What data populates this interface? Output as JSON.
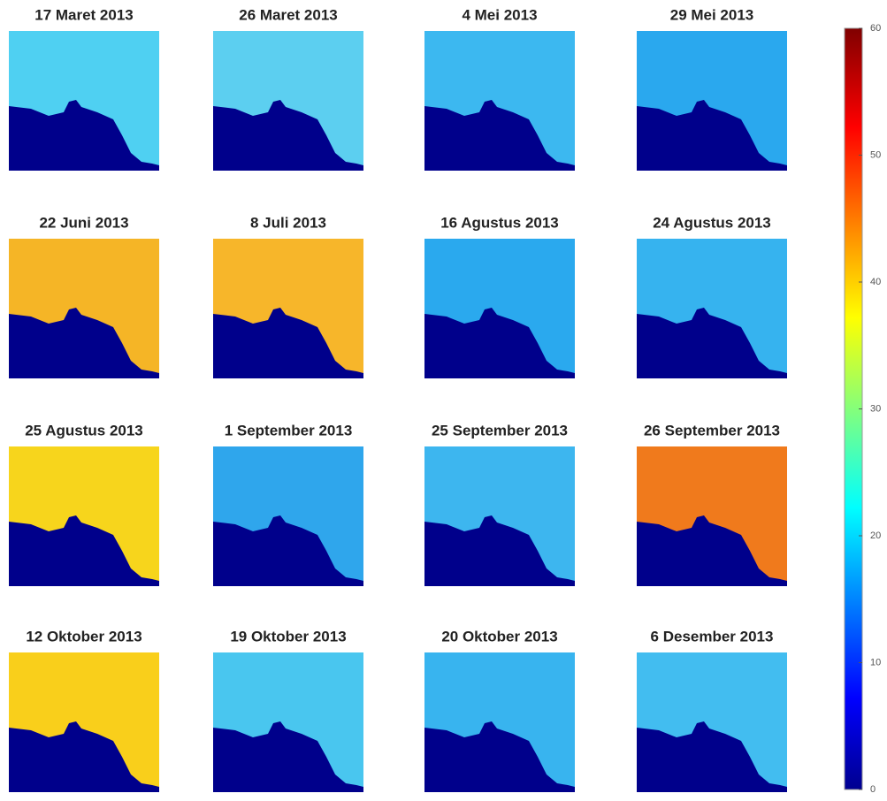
{
  "panels": [
    {
      "title": "17 Maret 2013",
      "color": "#4fd0f2"
    },
    {
      "title": "26 Maret 2013",
      "color": "#5ccff0"
    },
    {
      "title": "4 Mei 2013",
      "color": "#3cb8f0"
    },
    {
      "title": "29 Mei 2013",
      "color": "#2aa8ee"
    },
    {
      "title": "22 Juni 2013",
      "color": "#f5b526"
    },
    {
      "title": "8 Juli 2013",
      "color": "#f7b62a"
    },
    {
      "title": "16 Agustus 2013",
      "color": "#2aa9ee"
    },
    {
      "title": "24 Agustus 2013",
      "color": "#36b3ef"
    },
    {
      "title": "25 Agustus 2013",
      "color": "#f7d51c"
    },
    {
      "title": "1 September 2013",
      "color": "#2fa6ec"
    },
    {
      "title": "25 September 2013",
      "color": "#3db6ef"
    },
    {
      "title": "26 September 2013",
      "color": "#f07a1c"
    },
    {
      "title": "12 Oktober 2013",
      "color": "#f9cf1b"
    },
    {
      "title": "19 Oktober 2013",
      "color": "#49c6ef"
    },
    {
      "title": "20 Oktober 2013",
      "color": "#38b4ef"
    },
    {
      "title": "6 Desember 2013",
      "color": "#42bdf0"
    }
  ],
  "colorbar": {
    "lim": [
      0,
      60
    ],
    "ticks": [
      0,
      10,
      20,
      30,
      40,
      50,
      60
    ]
  }
}
